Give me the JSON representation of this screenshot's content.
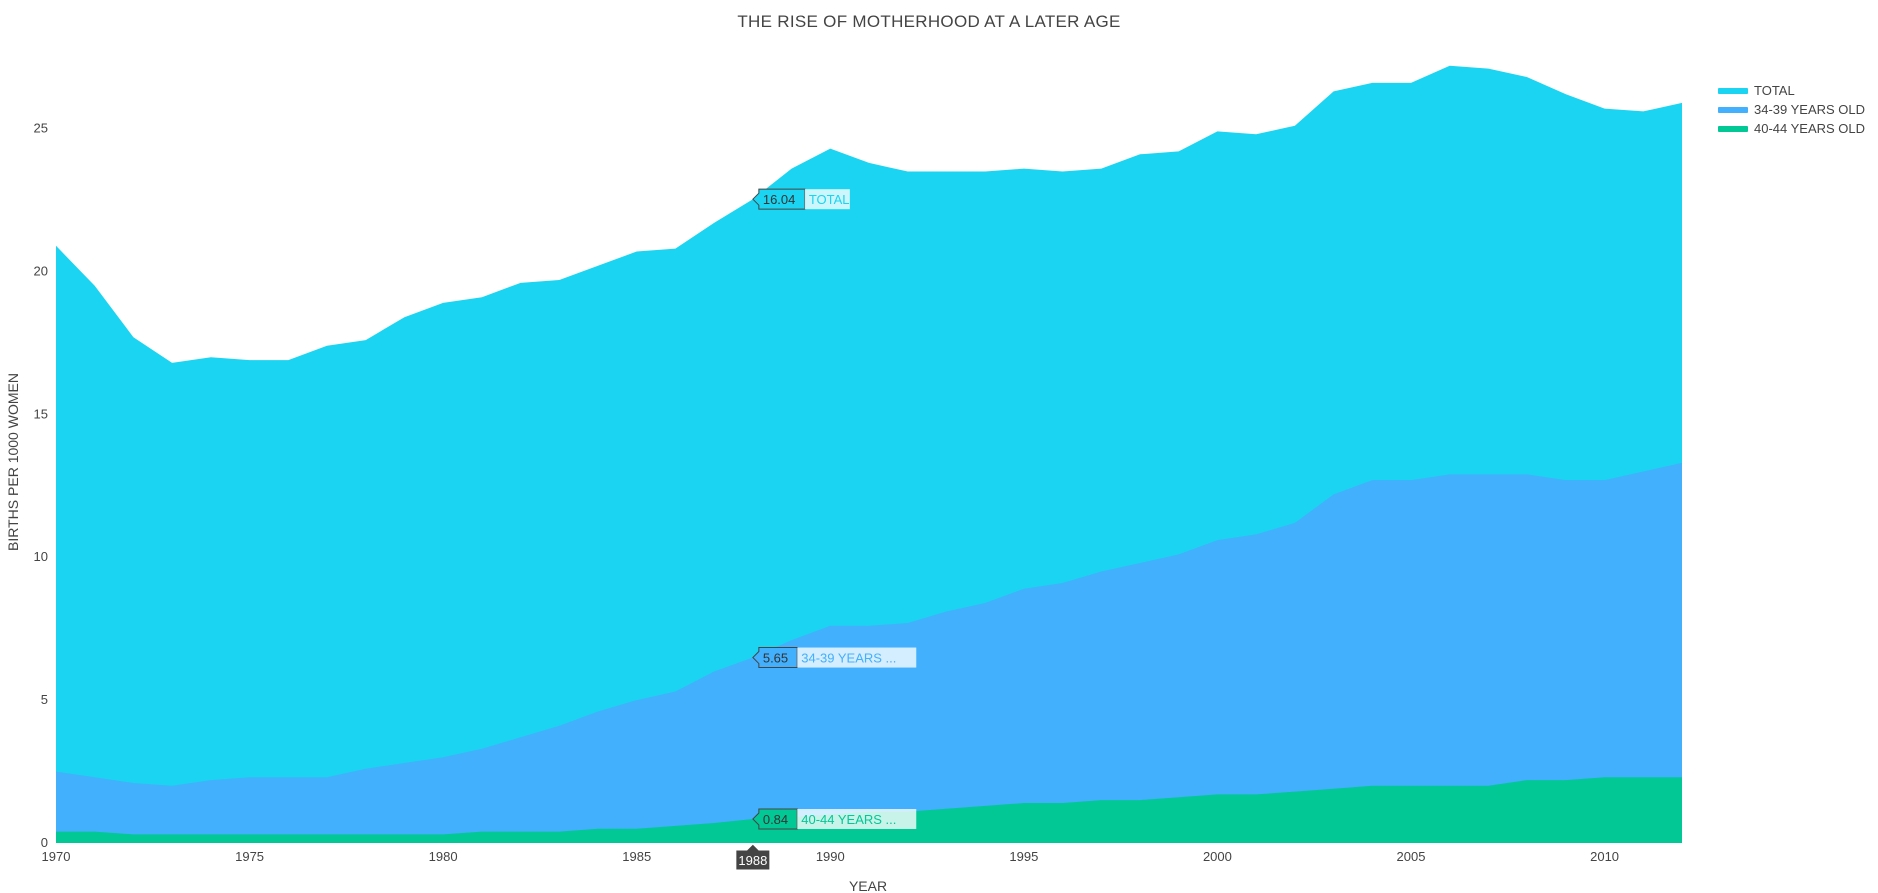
{
  "chart_data": {
    "type": "area",
    "title": "THE RISE OF MOTHERHOOD AT A LATER AGE",
    "xlabel": "YEAR",
    "ylabel": "BIRTHS PER 1000 WOMEN",
    "xlim": [
      1970,
      2012
    ],
    "ylim": [
      0,
      28.1
    ],
    "x_ticks": [
      "1970",
      "1975",
      "1980",
      "1985",
      "1990",
      "1995",
      "2000",
      "2005",
      "2010"
    ],
    "y_ticks": [
      "0",
      "5",
      "10",
      "15",
      "20",
      "25"
    ],
    "grid": false,
    "legend_position": "top-right",
    "stacked": true,
    "x": [
      1970,
      1971,
      1972,
      1973,
      1974,
      1975,
      1976,
      1977,
      1978,
      1979,
      1980,
      1981,
      1982,
      1983,
      1984,
      1985,
      1986,
      1987,
      1988,
      1989,
      1990,
      1991,
      1992,
      1993,
      1994,
      1995,
      1996,
      1997,
      1998,
      1999,
      2000,
      2001,
      2002,
      2003,
      2004,
      2005,
      2006,
      2007,
      2008,
      2009,
      2010,
      2011,
      2012
    ],
    "series": [
      {
        "name": "TOTAL",
        "color": "#1ad4f2",
        "values": [
          18.4,
          17.2,
          15.6,
          14.8,
          14.8,
          14.6,
          14.6,
          15.1,
          15.0,
          15.6,
          15.9,
          15.8,
          15.9,
          15.6,
          15.6,
          15.7,
          15.5,
          15.7,
          16.04,
          16.5,
          16.7,
          16.2,
          15.8,
          15.4,
          15.1,
          14.7,
          14.4,
          14.1,
          14.3,
          14.1,
          14.3,
          14.0,
          13.9,
          14.1,
          13.9,
          13.9,
          14.3,
          14.2,
          13.9,
          13.5,
          13.0,
          12.6,
          12.6
        ]
      },
      {
        "name": "34-39 YEARS OLD",
        "color": "#42b0fd",
        "values": [
          2.1,
          1.9,
          1.8,
          1.7,
          1.9,
          2.0,
          2.0,
          2.0,
          2.3,
          2.5,
          2.7,
          2.9,
          3.3,
          3.7,
          4.1,
          4.5,
          4.7,
          5.3,
          5.65,
          6.2,
          6.6,
          6.5,
          6.6,
          6.9,
          7.1,
          7.5,
          7.7,
          8.0,
          8.3,
          8.5,
          8.9,
          9.1,
          9.4,
          10.3,
          10.7,
          10.7,
          10.9,
          10.9,
          10.7,
          10.5,
          10.4,
          10.7,
          11.0
        ]
      },
      {
        "name": "40-44 YEARS OLD",
        "color": "#02c896",
        "values": [
          0.4,
          0.4,
          0.3,
          0.3,
          0.3,
          0.3,
          0.3,
          0.3,
          0.3,
          0.3,
          0.3,
          0.4,
          0.4,
          0.4,
          0.5,
          0.5,
          0.6,
          0.7,
          0.84,
          0.9,
          1.0,
          1.1,
          1.1,
          1.2,
          1.3,
          1.4,
          1.4,
          1.5,
          1.5,
          1.6,
          1.7,
          1.7,
          1.8,
          1.9,
          2.0,
          2.0,
          2.0,
          2.0,
          2.2,
          2.2,
          2.3,
          2.3,
          2.3
        ]
      }
    ],
    "hover": {
      "year": "1988",
      "labels": [
        {
          "series": "TOTAL",
          "value": "16.04",
          "text": "TOTAL"
        },
        {
          "series": "34-39 YEARS OLD",
          "value": "5.65",
          "text": "34-39 YEARS ..."
        },
        {
          "series": "40-44 YEARS OLD",
          "value": "0.84",
          "text": "40-44 YEARS ..."
        }
      ]
    }
  }
}
